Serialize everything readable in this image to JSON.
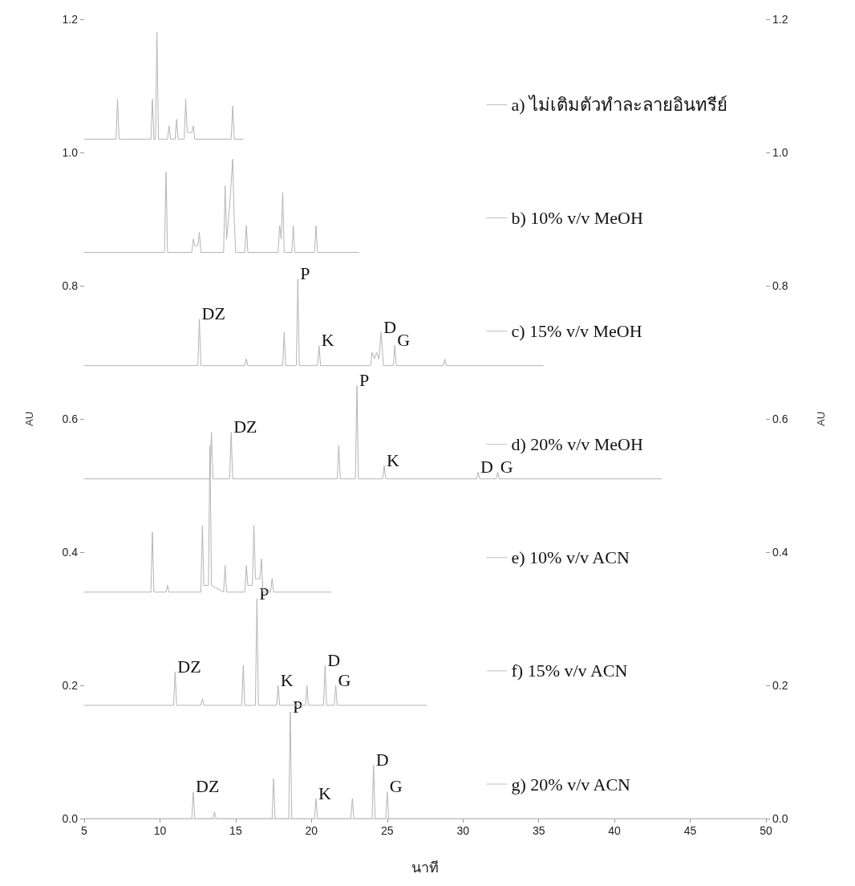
{
  "chart_data": {
    "type": "line",
    "xlabel": "นาที",
    "ylabel": "AU",
    "y2label": "AU",
    "xlim": [
      5,
      50
    ],
    "xticks": [
      5,
      10,
      15,
      20,
      25,
      30,
      35,
      40,
      45,
      50
    ],
    "ylim": [
      0,
      1.2
    ],
    "yticks": [
      {
        "value": 0,
        "label": "0.0"
      },
      0.2,
      0.4,
      0.6,
      0.8,
      {
        "value": 1,
        "label": "1.0"
      },
      1.2
    ],
    "y2lim": [
      0,
      1.2
    ],
    "y2ticks": [
      {
        "value": 0,
        "label": "0.0"
      },
      0.2,
      0.4,
      0.6,
      0.8,
      {
        "value": 1,
        "label": "1.0"
      },
      1.2
    ],
    "grid": false,
    "legend": "right",
    "marker": "none",
    "line_style": "solid",
    "series": [
      {
        "name": "a) ไม่เติมตัวทำละลายอินทรีย์",
        "color": "#b4b4b4",
        "x": [
          5,
          7.1,
          7.2,
          7.3,
          9.4,
          9.5,
          9.6,
          9.7,
          9.8,
          9.9,
          10.5,
          10.6,
          10.7,
          11.0,
          11.1,
          11.2,
          11.6,
          11.7,
          11.8,
          12.1,
          12.2,
          12.3,
          14.7,
          14.8,
          14.9,
          15.5
        ],
        "values": [
          1.02,
          1.02,
          1.08,
          1.02,
          1.02,
          1.08,
          1.02,
          1.02,
          1.18,
          1.02,
          1.02,
          1.04,
          1.02,
          1.02,
          1.05,
          1.02,
          1.02,
          1.08,
          1.03,
          1.03,
          1.04,
          1.02,
          1.02,
          1.07,
          1.02,
          1.02
        ]
      },
      {
        "name": "b) 10% v/v MeOH",
        "color": "#b4b4b4",
        "x": [
          5,
          10.3,
          10.4,
          10.5,
          12.1,
          12.2,
          12.3,
          12.5,
          12.6,
          12.7,
          14.2,
          14.3,
          14.4,
          14.6,
          14.8,
          14.9,
          15.0,
          15.6,
          15.7,
          15.8,
          17.8,
          17.9,
          18.0,
          18.1,
          18.2,
          18.7,
          18.8,
          18.9,
          20.2,
          20.3,
          20.4,
          23.1
        ],
        "values": [
          0.85,
          0.85,
          0.97,
          0.85,
          0.85,
          0.87,
          0.86,
          0.86,
          0.88,
          0.85,
          0.85,
          0.95,
          0.87,
          0.92,
          0.99,
          0.9,
          0.85,
          0.85,
          0.89,
          0.85,
          0.85,
          0.89,
          0.87,
          0.94,
          0.85,
          0.85,
          0.89,
          0.85,
          0.85,
          0.89,
          0.85,
          0.85
        ]
      },
      {
        "name": "c) 15% v/v MeOH",
        "color": "#b4b4b4",
        "x": [
          5,
          12.5,
          12.6,
          12.7,
          15.6,
          15.7,
          15.8,
          18.1,
          18.2,
          18.3,
          19.0,
          19.1,
          19.2,
          20.4,
          20.5,
          20.6,
          23.9,
          24.0,
          24.15,
          24.3,
          24.45,
          24.6,
          24.75,
          25.4,
          25.5,
          25.6,
          28.7,
          28.8,
          28.9,
          35.3
        ],
        "values": [
          0.68,
          0.68,
          0.75,
          0.68,
          0.68,
          0.69,
          0.68,
          0.68,
          0.73,
          0.68,
          0.68,
          0.81,
          0.68,
          0.68,
          0.71,
          0.68,
          0.68,
          0.7,
          0.69,
          0.7,
          0.69,
          0.73,
          0.68,
          0.68,
          0.71,
          0.68,
          0.68,
          0.69,
          0.68,
          0.68
        ]
      },
      {
        "name": "d) 20% v/v MeOH",
        "color": "#b4b4b4",
        "x": [
          5,
          13.3,
          13.4,
          13.5,
          14.6,
          14.7,
          14.8,
          21.7,
          21.8,
          21.9,
          22.9,
          23.0,
          23.1,
          24.7,
          24.8,
          24.9,
          30.9,
          31.0,
          31.1,
          32.2,
          32.3,
          32.4,
          43.1
        ],
        "values": [
          0.51,
          0.51,
          0.58,
          0.51,
          0.51,
          0.58,
          0.51,
          0.51,
          0.56,
          0.51,
          0.51,
          0.65,
          0.51,
          0.51,
          0.53,
          0.51,
          0.51,
          0.52,
          0.51,
          0.51,
          0.52,
          0.51,
          0.51
        ]
      },
      {
        "name": "e) 10% v/v ACN",
        "color": "#b4b4b4",
        "x": [
          5,
          9.4,
          9.5,
          9.6,
          10.4,
          10.5,
          10.6,
          12.7,
          12.8,
          12.9,
          13.2,
          13.3,
          13.4,
          14.2,
          14.3,
          14.4,
          15.6,
          15.7,
          15.8,
          16.1,
          16.2,
          16.3,
          16.6,
          16.7,
          16.8,
          17.3,
          17.4,
          17.5,
          21.3
        ],
        "values": [
          0.34,
          0.34,
          0.43,
          0.34,
          0.34,
          0.35,
          0.34,
          0.34,
          0.44,
          0.35,
          0.35,
          0.56,
          0.35,
          0.34,
          0.38,
          0.34,
          0.34,
          0.38,
          0.35,
          0.35,
          0.44,
          0.36,
          0.36,
          0.39,
          0.34,
          0.34,
          0.36,
          0.34,
          0.34
        ]
      },
      {
        "name": "f) 15% v/v ACN",
        "color": "#b4b4b4",
        "x": [
          5,
          10.9,
          11.0,
          11.1,
          12.7,
          12.8,
          12.9,
          15.4,
          15.5,
          15.6,
          16.3,
          16.4,
          16.5,
          17.7,
          17.8,
          17.9,
          19.6,
          19.7,
          19.8,
          20.8,
          20.9,
          21.0,
          21.5,
          21.6,
          21.7,
          27.6
        ],
        "values": [
          0.17,
          0.17,
          0.22,
          0.17,
          0.17,
          0.18,
          0.17,
          0.17,
          0.23,
          0.17,
          0.17,
          0.33,
          0.17,
          0.17,
          0.2,
          0.17,
          0.17,
          0.2,
          0.17,
          0.17,
          0.23,
          0.17,
          0.17,
          0.2,
          0.17,
          0.17
        ]
      },
      {
        "name": "g) 20% v/v ACN",
        "color": "#b4b4b4",
        "x": [
          5,
          12.1,
          12.2,
          12.3,
          13.5,
          13.6,
          13.7,
          17.4,
          17.5,
          17.6,
          18.5,
          18.6,
          18.7,
          20.2,
          20.3,
          20.4,
          22.6,
          22.7,
          22.8,
          24.0,
          24.1,
          24.2,
          24.9,
          25.0,
          25.1,
          50
        ],
        "values": [
          0,
          0,
          0.04,
          0,
          0,
          0.01,
          0,
          0,
          0.06,
          0,
          0,
          0.16,
          0,
          0,
          0.03,
          0,
          0,
          0.03,
          0,
          0,
          0.08,
          0,
          0,
          0.04,
          0,
          0
        ]
      }
    ],
    "annotations": [
      {
        "text": "DZ",
        "x": 12.6,
        "y": 0.75
      },
      {
        "text": "P",
        "x": 19.1,
        "y": 0.81
      },
      {
        "text": "K",
        "x": 20.5,
        "y": 0.71
      },
      {
        "text": "D",
        "x": 24.6,
        "y": 0.73
      },
      {
        "text": "G",
        "x": 25.5,
        "y": 0.71
      },
      {
        "text": "DZ",
        "x": 14.7,
        "y": 0.58
      },
      {
        "text": "P",
        "x": 23.0,
        "y": 0.65
      },
      {
        "text": "K",
        "x": 24.8,
        "y": 0.53
      },
      {
        "text": "D",
        "x": 31.0,
        "y": 0.52
      },
      {
        "text": "G",
        "x": 32.3,
        "y": 0.52
      },
      {
        "text": "DZ",
        "x": 11.0,
        "y": 0.22
      },
      {
        "text": "P",
        "x": 16.4,
        "y": 0.33
      },
      {
        "text": "K",
        "x": 17.8,
        "y": 0.2
      },
      {
        "text": "D",
        "x": 20.9,
        "y": 0.23
      },
      {
        "text": "G",
        "x": 21.6,
        "y": 0.2
      },
      {
        "text": "DZ",
        "x": 12.2,
        "y": 0.04
      },
      {
        "text": "P",
        "x": 18.6,
        "y": 0.16
      },
      {
        "text": "K",
        "x": 20.3,
        "y": 0.03
      },
      {
        "text": "D",
        "x": 24.1,
        "y": 0.08
      },
      {
        "text": "G",
        "x": 25.0,
        "y": 0.04
      }
    ]
  }
}
